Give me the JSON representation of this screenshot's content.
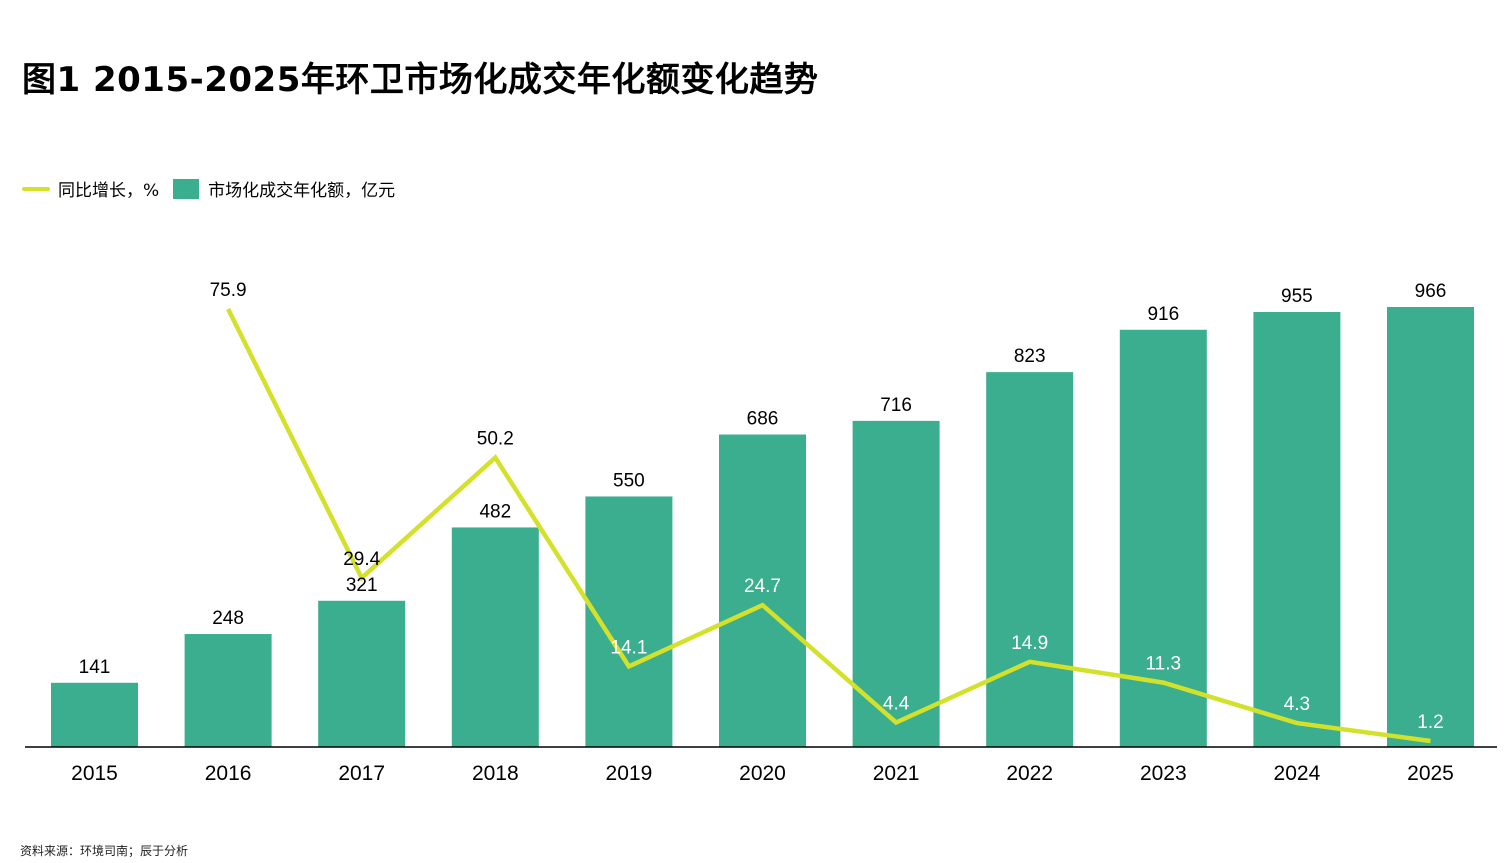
{
  "title": "图1 2015-2025年环卫市场化成交年化额变化趋势",
  "source": "资料来源：环境司南；辰于分析",
  "colors": {
    "bar": "#3aae8f",
    "line": "#d4e12a",
    "axis": "#000000"
  },
  "chart_data": {
    "type": "bar",
    "categories": [
      "2015",
      "2016",
      "2017",
      "2018",
      "2019",
      "2020",
      "2021",
      "2022",
      "2023",
      "2024",
      "2025"
    ],
    "series": [
      {
        "name": "市场化成交年化额，亿元",
        "type": "bar",
        "values": [
          141,
          248,
          321,
          482,
          550,
          686,
          716,
          823,
          916,
          955,
          966
        ]
      },
      {
        "name": "同比增长，%",
        "type": "line",
        "values": [
          null,
          75.9,
          29.4,
          50.2,
          14.1,
          24.7,
          4.4,
          14.9,
          11.3,
          4.3,
          1.2
        ]
      }
    ],
    "xlabel": "",
    "ylabel": "",
    "grid": false,
    "legend_position": "top-left"
  }
}
